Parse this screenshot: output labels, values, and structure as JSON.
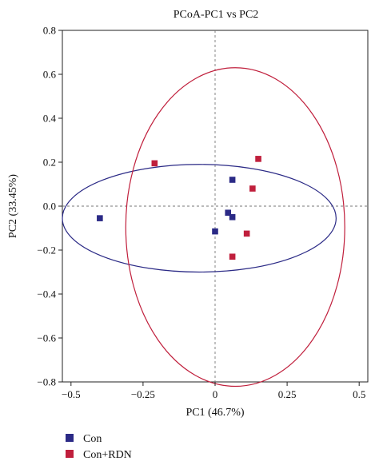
{
  "chart_data": {
    "type": "scatter",
    "title": "PCoA-PC1 vs PC2",
    "xlabel": "PC1 (46.7%)",
    "ylabel": "PC2 (33.45%)",
    "xlim": [
      -0.53,
      0.53
    ],
    "ylim": [
      -0.8,
      0.8
    ],
    "xticks": [
      -0.5,
      -0.25,
      0,
      0.25,
      0.5
    ],
    "xtick_labels": [
      "−0.5",
      "−0.25",
      "0",
      "0.25",
      "0.5"
    ],
    "yticks": [
      0.8,
      0.6,
      0.4,
      0.2,
      0.0,
      -0.2,
      -0.4,
      -0.6,
      -0.8
    ],
    "ytick_labels": [
      "0.8",
      "0.6",
      "0.4",
      "0.2",
      "0.0",
      "−0.2",
      "−0.4",
      "−0.6",
      "−0.8"
    ],
    "reference_lines": {
      "x": 0,
      "y": 0,
      "style": "dashed"
    },
    "grid": false,
    "legend_position": "bottom-left",
    "series": [
      {
        "name": "Con",
        "color": "#2b2a86",
        "marker": "square",
        "points": [
          {
            "x": -0.4,
            "y": -0.055
          },
          {
            "x": 0.0,
            "y": -0.115
          },
          {
            "x": 0.06,
            "y": 0.12
          },
          {
            "x": 0.045,
            "y": -0.03
          },
          {
            "x": 0.06,
            "y": -0.05
          }
        ],
        "ellipse": {
          "cx": -0.055,
          "cy": -0.055,
          "rx": 0.475,
          "ry": 0.245
        }
      },
      {
        "name": "Con+RDN",
        "color": "#c01f3c",
        "marker": "square",
        "points": [
          {
            "x": -0.21,
            "y": 0.195
          },
          {
            "x": 0.15,
            "y": 0.215
          },
          {
            "x": 0.13,
            "y": 0.08
          },
          {
            "x": 0.11,
            "y": -0.125
          },
          {
            "x": 0.06,
            "y": -0.23
          }
        ],
        "ellipse": {
          "cx": 0.07,
          "cy": -0.095,
          "rx": 0.38,
          "ry": 0.725
        }
      }
    ]
  }
}
